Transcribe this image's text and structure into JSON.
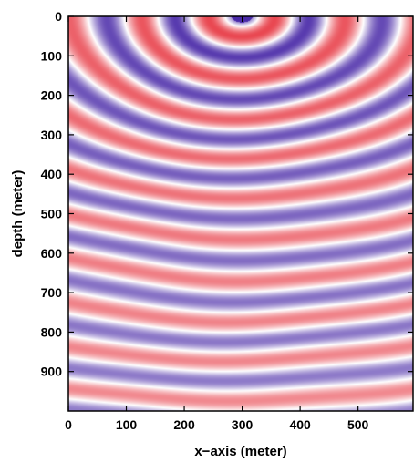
{
  "chart_data": {
    "type": "heatmap",
    "title": "",
    "xlabel": "x−axis (meter)",
    "ylabel": "depth (meter)",
    "xlim": [
      0,
      595
    ],
    "ylim": [
      0,
      1000
    ],
    "y_inverted": true,
    "x_ticks": [
      "0",
      "100",
      "200",
      "300",
      "400",
      "500"
    ],
    "y_ticks": [
      "0",
      "100",
      "200",
      "300",
      "400",
      "500",
      "600",
      "700",
      "800",
      "900"
    ],
    "colormap": {
      "negative": "#4a2aa8",
      "zero": "#ffffff",
      "positive": "#e8404a"
    },
    "grid": false,
    "legend": "none",
    "wave_source": {
      "x": 300,
      "y": 0
    }
  }
}
